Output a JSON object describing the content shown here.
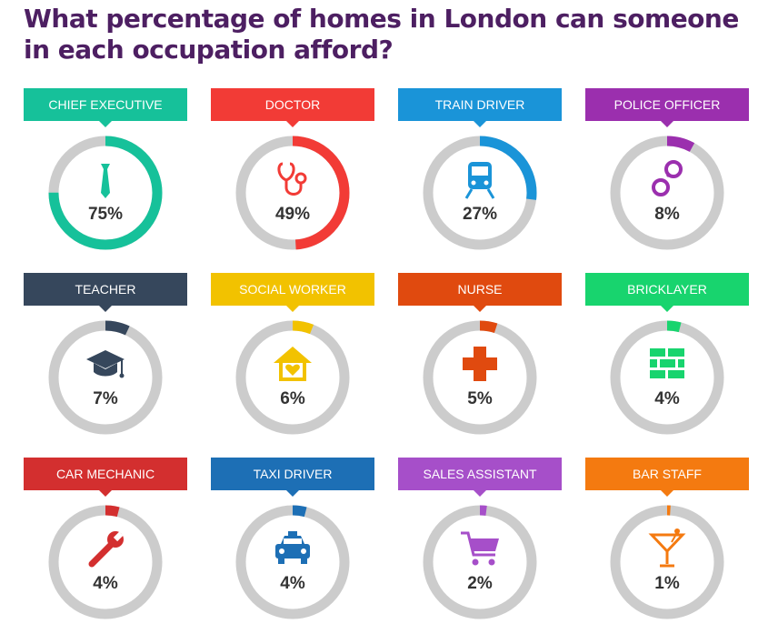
{
  "title": "What percentage of homes in London can someone in each occupation afford?",
  "chart_data": {
    "type": "donut-grid",
    "title": "What percentage of homes in London can someone in each occupation afford?",
    "unit": "%",
    "categories": [
      "CHIEF EXECUTIVE",
      "DOCTOR",
      "TRAIN DRIVER",
      "POLICE OFFICER",
      "TEACHER",
      "SOCIAL WORKER",
      "NURSE",
      "BRICKLAYER",
      "CAR MECHANIC",
      "TAXI DRIVER",
      "SALES ASSISTANT",
      "BAR STAFF"
    ],
    "values": [
      75,
      49,
      27,
      8,
      7,
      6,
      5,
      4,
      4,
      4,
      2,
      1
    ],
    "labels": [
      "75%",
      "49%",
      "27%",
      "8%",
      "7%",
      "6%",
      "5%",
      "4%",
      "4%",
      "4%",
      "2%",
      "1%"
    ],
    "colors": [
      "#16c19a",
      "#f23b36",
      "#1a94d8",
      "#9b2fae",
      "#36475c",
      "#f2c200",
      "#e04a0f",
      "#18d46e",
      "#d32f2f",
      "#1d6fb5",
      "#a64fc9",
      "#f47a10"
    ],
    "icons": [
      "tie-icon",
      "stethoscope-icon",
      "train-icon",
      "handcuffs-icon",
      "graduation-cap-icon",
      "home-heart-icon",
      "medical-cross-icon",
      "bricks-icon",
      "wrench-icon",
      "taxi-icon",
      "shopping-cart-icon",
      "cocktail-icon"
    ],
    "track_color": "#cccccc"
  }
}
